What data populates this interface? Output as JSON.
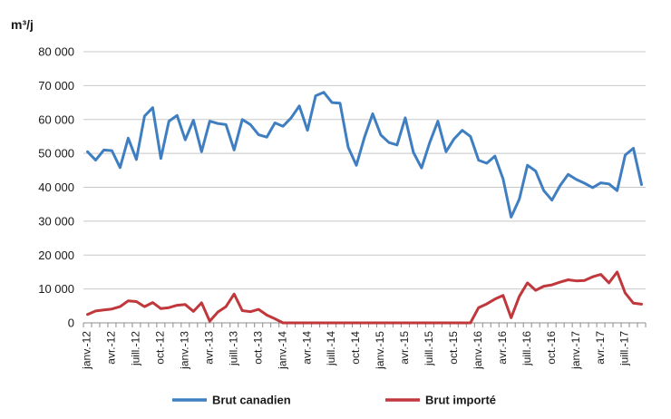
{
  "chart_data": {
    "type": "line",
    "y_unit": "m³/j",
    "ylim": [
      0,
      80000
    ],
    "y_ticks": [
      0,
      10000,
      20000,
      30000,
      40000,
      50000,
      60000,
      70000,
      80000
    ],
    "y_tick_labels": [
      "0",
      "10 000",
      "20 000",
      "30 000",
      "40 000",
      "50 000",
      "60 000",
      "70 000",
      "80 000"
    ],
    "x": [
      "janv.-12",
      "févr.-12",
      "mars-12",
      "avr.-12",
      "mai-12",
      "juin-12",
      "juill.-12",
      "août-12",
      "sept.-12",
      "oct.-12",
      "nov.-12",
      "déc.-12",
      "janv.-13",
      "févr.-13",
      "mars-13",
      "avr.-13",
      "mai-13",
      "juin-13",
      "juill.-13",
      "août-13",
      "sept.-13",
      "oct.-13",
      "nov.-13",
      "déc.-13",
      "janv.-14",
      "févr.-14",
      "mars-14",
      "avr.-14",
      "mai-14",
      "juin-14",
      "juill.-14",
      "août-14",
      "sept.-14",
      "oct.-14",
      "nov.-14",
      "déc.-14",
      "janv.-15",
      "févr.-15",
      "mars-15",
      "avr.-15",
      "mai-15",
      "juin-15",
      "juill.-15",
      "août-15",
      "sept.-15",
      "oct.-15",
      "nov.-15",
      "déc.-15",
      "janv.-16",
      "févr.-16",
      "mars-16",
      "avr.-16",
      "mai-16",
      "juin-16",
      "juill.-16",
      "août-16",
      "sept.-16",
      "oct.-16",
      "nov.-16",
      "déc.-16",
      "janv.-17",
      "févr.-17",
      "mars-17",
      "avr.-17",
      "mai-17",
      "juin-17",
      "juill.-17",
      "août-17",
      "sept.-17"
    ],
    "x_tick_labels": [
      "janv.-12",
      "avr.-12",
      "juill.-12",
      "oct.-12",
      "janv.-13",
      "avr.-13",
      "juill.-13",
      "oct.-13",
      "janv.-14",
      "avr.-14",
      "juill.-14",
      "oct.-14",
      "janv.-15",
      "avr.-15",
      "juill.-15",
      "oct.-15",
      "janv.-16",
      "avr.-16",
      "juill.-16",
      "oct.-16",
      "janv.-17",
      "avr.-17",
      "juill.-17"
    ],
    "grid": "horizontal",
    "legend_position": "bottom",
    "series": [
      {
        "name": "Brut canadien",
        "color": "#3f7fc1",
        "values": [
          50500,
          48000,
          51000,
          50800,
          45800,
          54500,
          48200,
          61000,
          63500,
          48500,
          59500,
          61200,
          54000,
          59800,
          50500,
          59500,
          58800,
          58500,
          51000,
          60000,
          58500,
          55500,
          54800,
          59000,
          58000,
          60500,
          64000,
          56800,
          67000,
          68000,
          65000,
          64800,
          51800,
          46500,
          54800,
          61700,
          55400,
          53200,
          52500,
          60500,
          50300,
          45700,
          53200,
          59500,
          50500,
          54300,
          56800,
          55000,
          48000,
          47100,
          49200,
          42500,
          31200,
          36500,
          46500,
          44800,
          39000,
          36200,
          40500,
          43800,
          42300,
          41200,
          39900,
          41300,
          41000,
          39000,
          49500,
          51500,
          40800
        ]
      },
      {
        "name": "Brut importé",
        "color": "#c0373c",
        "values": [
          2500,
          3500,
          3800,
          4100,
          4800,
          6500,
          6300,
          4800,
          6000,
          4200,
          4500,
          5200,
          5400,
          3400,
          5900,
          500,
          3200,
          4800,
          8500,
          3600,
          3300,
          4000,
          2300,
          1200,
          0,
          0,
          0,
          0,
          0,
          0,
          0,
          0,
          0,
          0,
          0,
          0,
          0,
          0,
          0,
          0,
          0,
          0,
          0,
          0,
          0,
          0,
          0,
          0,
          4500,
          5600,
          7000,
          8100,
          1500,
          7800,
          11800,
          9600,
          10800,
          11200,
          12000,
          12700,
          12400,
          12500,
          13600,
          14300,
          11800,
          15000,
          8800,
          5800,
          5500
        ]
      }
    ]
  }
}
